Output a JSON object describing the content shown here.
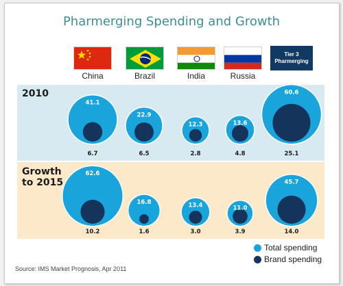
{
  "title": "Pharmerging Spending and Growth",
  "source": "Source: IMS Market Prognosis, Apr 2011",
  "colors": {
    "total": "#1aa4dc",
    "brand": "#14345c",
    "band_2010": "#d7e9f1",
    "band_growth": "#fbe9c9",
    "title": "#3c8e98"
  },
  "tier3_label_line1": "Tier 3",
  "tier3_label_line2": "Pharmerging",
  "chart_data": {
    "type": "bubble",
    "title": "Pharmerging Spending and Growth",
    "categories": [
      "China",
      "Brazil",
      "India",
      "Russia",
      "Tier 3 Pharmerging"
    ],
    "rows": [
      {
        "label": "2010",
        "total_spending": [
          41.1,
          22.9,
          12.3,
          13.6,
          60.6
        ],
        "brand_spending": [
          6.7,
          6.5,
          2.8,
          4.8,
          25.1
        ]
      },
      {
        "label": "Growth to 2015",
        "label_line1": "Growth",
        "label_line2": "to 2015",
        "total_spending": [
          62.6,
          16.8,
          13.4,
          11.0,
          45.7
        ],
        "brand_spending": [
          10.2,
          1.6,
          3.0,
          3.9,
          14.0
        ]
      }
    ],
    "legend": [
      "Total spending",
      "Brand spending"
    ],
    "legend_position": "bottom-right"
  }
}
